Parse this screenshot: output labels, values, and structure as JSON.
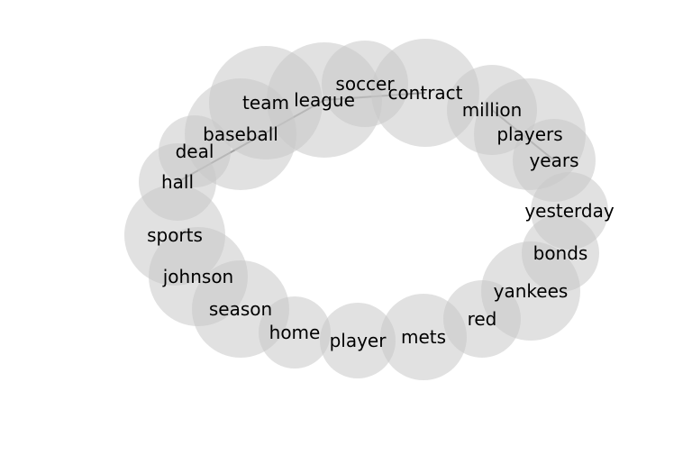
{
  "colors": {
    "bubble_fill": "#c8c8c8",
    "edge_stroke": "#777777",
    "label": "#000000"
  },
  "diagram": {
    "nodes": [
      {
        "id": "soccer",
        "label": "soccer"
      },
      {
        "id": "contract",
        "label": "contract"
      },
      {
        "id": "team",
        "label": "team"
      },
      {
        "id": "league",
        "label": "league"
      },
      {
        "id": "million",
        "label": "million"
      },
      {
        "id": "baseball",
        "label": "baseball"
      },
      {
        "id": "players",
        "label": "players"
      },
      {
        "id": "deal",
        "label": "deal"
      },
      {
        "id": "years",
        "label": "years"
      },
      {
        "id": "hall",
        "label": "hall"
      },
      {
        "id": "yesterday",
        "label": "yesterday"
      },
      {
        "id": "sports",
        "label": "sports"
      },
      {
        "id": "bonds",
        "label": "bonds"
      },
      {
        "id": "johnson",
        "label": "johnson"
      },
      {
        "id": "yankees",
        "label": "yankees"
      },
      {
        "id": "season",
        "label": "season"
      },
      {
        "id": "red",
        "label": "red"
      },
      {
        "id": "home",
        "label": "home"
      },
      {
        "id": "mets",
        "label": "mets"
      },
      {
        "id": "player",
        "label": "player"
      }
    ],
    "edges": [
      [
        "hall",
        "league"
      ],
      [
        "league",
        "contract"
      ],
      [
        "million",
        "years"
      ]
    ]
  }
}
